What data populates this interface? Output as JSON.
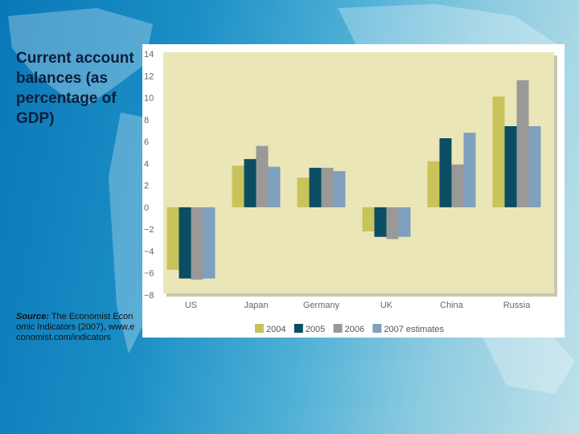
{
  "slide": {
    "title": "Current account balances (as percentage of GDP)",
    "source_label": "Source:",
    "source_text": "The Economist Economic Indicators (2007), www.economist.com/indicators"
  },
  "chart_data": {
    "type": "bar",
    "title": "",
    "xlabel": "",
    "ylabel": "",
    "ylim": [
      -6,
      14
    ],
    "yticks": [
      14,
      12,
      10,
      8,
      6,
      4,
      2,
      0,
      -2,
      -4,
      -6,
      -8
    ],
    "categories": [
      "US",
      "Japan",
      "Germany",
      "UK",
      "China",
      "Russia"
    ],
    "series": [
      {
        "name": "2004",
        "color": "#c8c35a",
        "values": [
          -5.7,
          3.8,
          2.7,
          -2.2,
          4.2,
          10.1
        ]
      },
      {
        "name": "2005",
        "color": "#0b4d62",
        "values": [
          -6.5,
          4.4,
          3.6,
          -2.7,
          6.3,
          7.4
        ]
      },
      {
        "name": "2006",
        "color": "#999999",
        "values": [
          -6.6,
          5.6,
          3.6,
          -2.9,
          3.9,
          11.6
        ]
      },
      {
        "name": "2007 estimates",
        "color": "#7fa0be",
        "values": [
          -6.5,
          3.7,
          3.3,
          -2.7,
          6.8,
          7.4
        ]
      }
    ],
    "legend_position": "bottom",
    "grid": false,
    "plot_background": "#ebe6b8"
  }
}
